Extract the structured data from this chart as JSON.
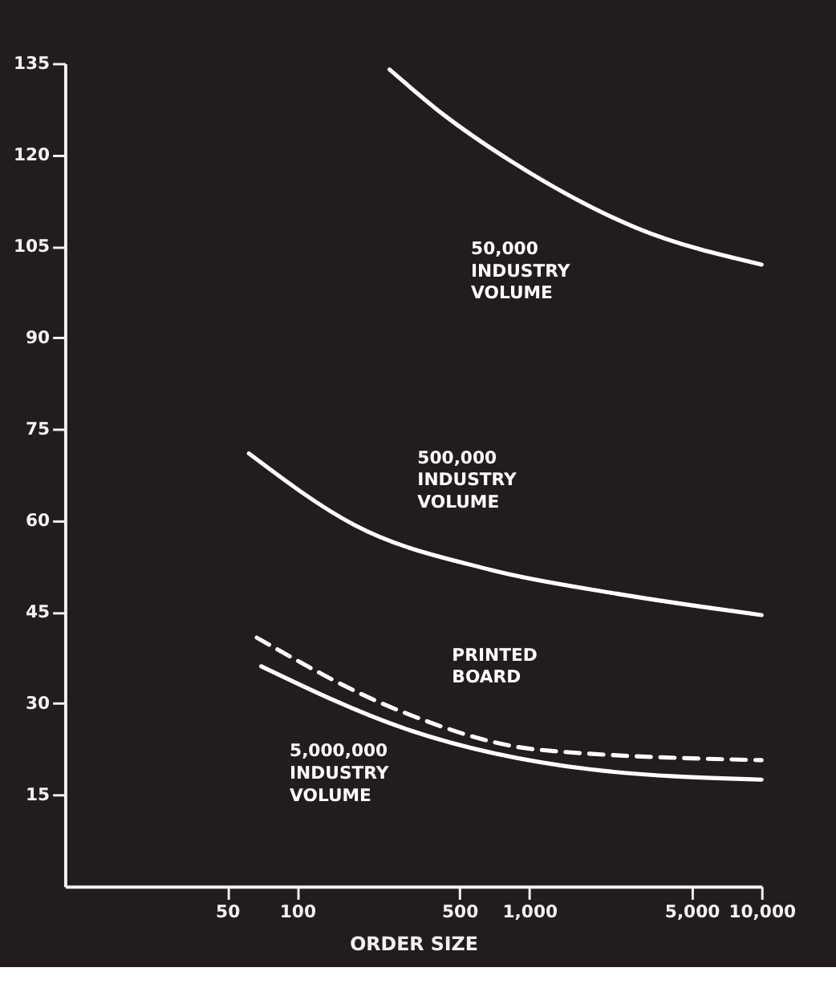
{
  "chart_data": {
    "type": "line",
    "xlabel": "ORDER SIZE",
    "log": "x",
    "xlim": [
      10,
      10000
    ],
    "xticks": [
      50,
      100,
      500,
      {
        "value": 1000,
        "label": "1,000"
      },
      {
        "value": 5000,
        "label": "5,000"
      },
      {
        "value": 10000,
        "label": "10,000"
      }
    ],
    "ylim": [
      0,
      135
    ],
    "yticks": [
      15,
      30,
      45,
      60,
      75,
      90,
      105,
      120,
      135
    ],
    "grid": false,
    "marker": "none",
    "series": [
      {
        "name": "50,000 INDUSTRY VOLUME",
        "color": "#ffffff",
        "line_style": "solid",
        "x": [
          250,
          430,
          830,
          2900,
          10000
        ],
        "values": [
          134,
          126.5,
          119,
          108,
          102
        ]
      },
      {
        "name": "500,000 INDUSTRY VOLUME",
        "color": "#ffffff",
        "line_style": "solid",
        "x": [
          62,
          176,
          684,
          2380,
          10000
        ],
        "values": [
          71,
          59.3,
          51.9,
          48,
          44.5
        ]
      },
      {
        "name": "PRINTED BOARD",
        "color": "#ffffff",
        "line_style": "dashed",
        "x": [
          67,
          268,
          1100,
          10000
        ],
        "values": [
          40.8,
          29,
          22.4,
          20.7
        ]
      },
      {
        "name": "5,000,000 INDUSTRY VOLUME",
        "color": "#ffffff",
        "line_style": "solid",
        "x": [
          70,
          295,
          1820,
          10000
        ],
        "values": [
          36.1,
          25.8,
          19.2,
          17.5
        ]
      }
    ]
  }
}
